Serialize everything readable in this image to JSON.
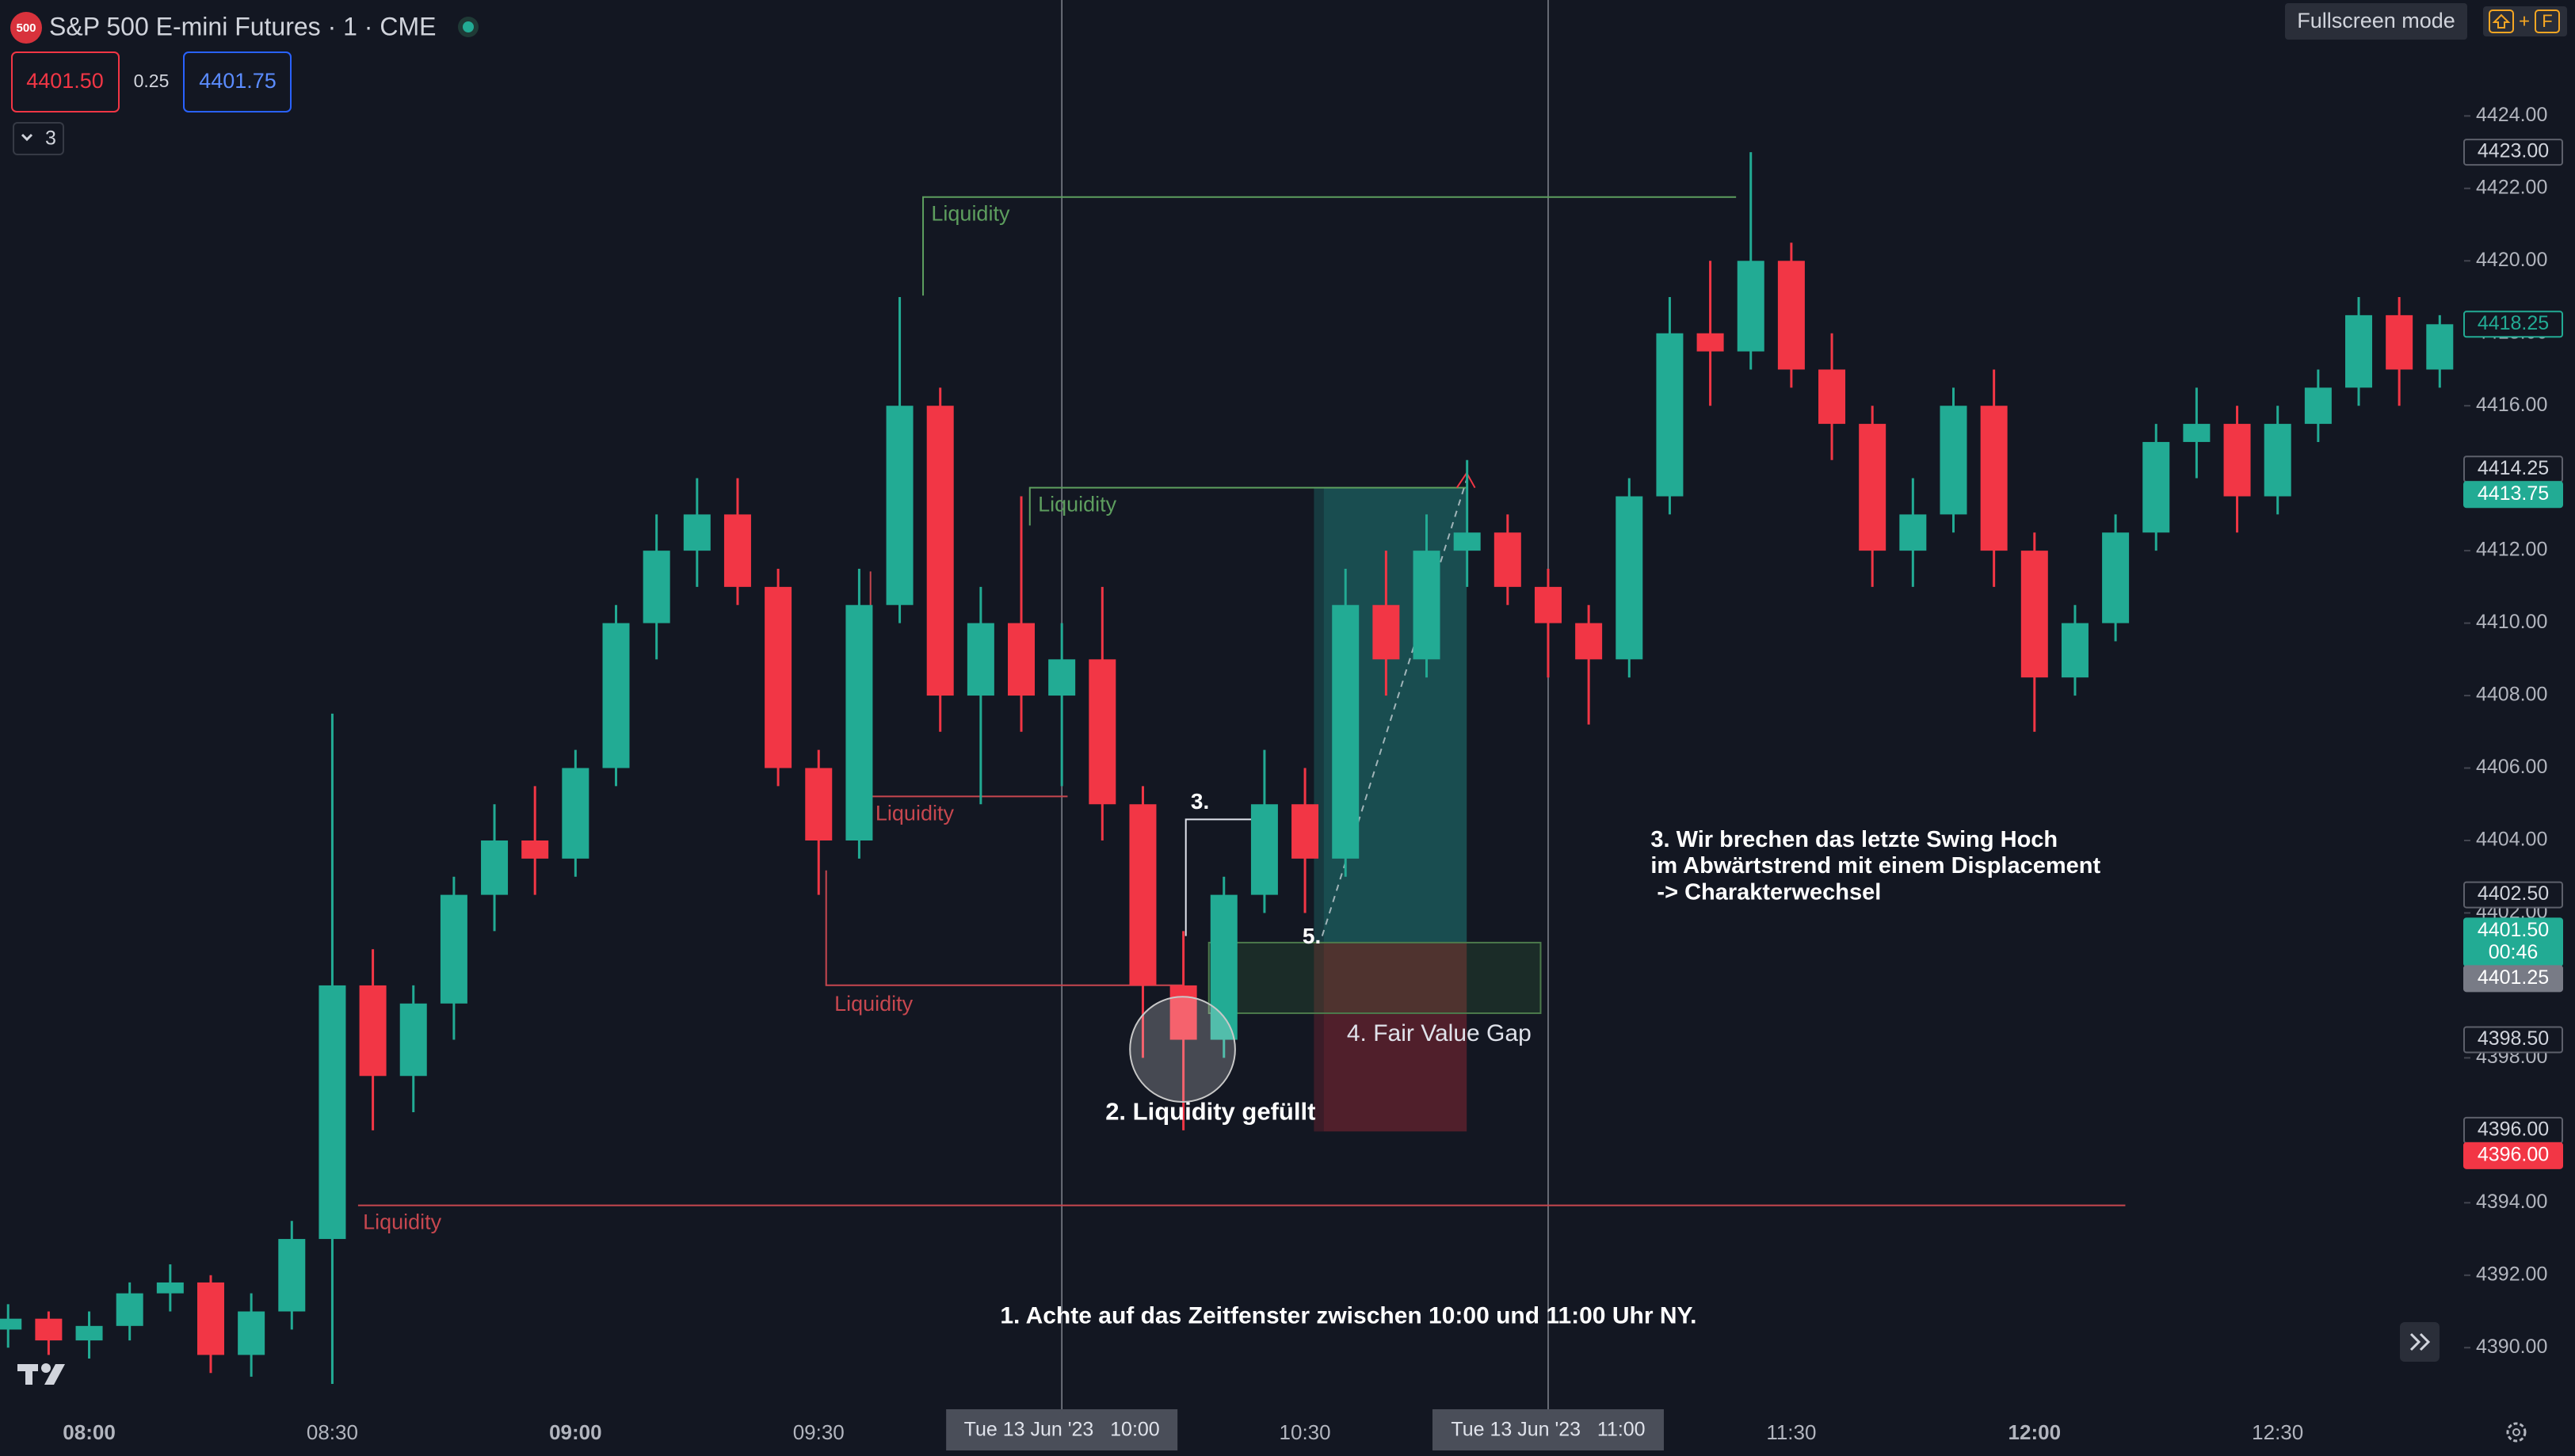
{
  "header": {
    "symbol_badge": "500",
    "title": "S&P 500 E-mini Futures · 1 · CME",
    "sell": "4401.50",
    "spread": "0.25",
    "buy": "4401.75",
    "indicators": "3"
  },
  "toolbar": {
    "fullscreen": "Fullscreen mode",
    "shortcut_plus": "+",
    "shortcut_key": "F"
  },
  "chart_data": {
    "type": "candlestick",
    "x": [
      "07:50",
      "07:55",
      "08:00",
      "08:05",
      "08:10",
      "08:15",
      "08:20",
      "08:25",
      "08:30",
      "08:35",
      "08:40",
      "08:45",
      "08:50",
      "08:55",
      "09:00",
      "09:05",
      "09:10",
      "09:15",
      "09:20",
      "09:25",
      "09:30",
      "09:35",
      "09:40",
      "09:45",
      "09:50",
      "09:55",
      "10:00",
      "10:05",
      "10:10",
      "10:15",
      "10:20",
      "10:25",
      "10:30",
      "10:35",
      "10:40",
      "10:45",
      "10:50",
      "10:55",
      "11:00",
      "11:05",
      "11:10",
      "11:15",
      "11:20",
      "11:25",
      "11:30",
      "11:35",
      "11:40",
      "11:45",
      "11:50",
      "11:55",
      "12:00",
      "12:05",
      "12:10",
      "12:15",
      "12:20",
      "12:25",
      "12:30",
      "12:35",
      "12:40",
      "12:45",
      "12:50"
    ],
    "open": [
      4390.5,
      4390.8,
      4390.2,
      4390.6,
      4391.5,
      4391.8,
      4389.8,
      4391,
      4393,
      4400,
      4397.5,
      4399.5,
      4402.5,
      4404,
      4403.5,
      4406,
      4410,
      4412,
      4413,
      4411,
      4406,
      4404,
      4410.5,
      4416,
      4408,
      4410,
      4408,
      4409,
      4405,
      4400,
      4398.5,
      4402.5,
      4405,
      4403.5,
      4410.5,
      4409,
      4412,
      4412.5,
      4411,
      4410,
      4409,
      4413.5,
      4418,
      4417.5,
      4420,
      4417,
      4415.5,
      4412,
      4413,
      4416,
      4412,
      4408.5,
      4410,
      4412.5,
      4415,
      4415.5,
      4413.5,
      4415.5,
      4416.5,
      4418.5,
      4417
    ],
    "high": [
      4391.2,
      4391,
      4391,
      4391.8,
      4392.3,
      4392,
      4391.5,
      4393.5,
      4407.5,
      4401,
      4400,
      4403,
      4405,
      4405.5,
      4406.5,
      4410.5,
      4413,
      4414,
      4414,
      4411.5,
      4406.5,
      4411.5,
      4419,
      4416.5,
      4411,
      4413.5,
      4410,
      4411,
      4405.5,
      4401.5,
      4403,
      4406.5,
      4406,
      4411.5,
      4412,
      4413,
      4414.5,
      4413,
      4411.5,
      4410.5,
      4414,
      4419,
      4420,
      4423,
      4420.5,
      4418,
      4416,
      4414,
      4416.5,
      4417,
      4412.5,
      4410.5,
      4413,
      4415.5,
      4416.5,
      4416,
      4416,
      4417,
      4419,
      4419,
      4418.5
    ],
    "low": [
      4390,
      4389.8,
      4389.7,
      4390.2,
      4391,
      4389.3,
      4389.2,
      4390.5,
      4389,
      4396,
      4396.5,
      4398.5,
      4401.5,
      4402.5,
      4403,
      4405.5,
      4409,
      4411,
      4410.5,
      4405.5,
      4402.5,
      4403.5,
      4410,
      4407,
      4405,
      4407,
      4405.5,
      4404,
      4398,
      4396,
      4398,
      4402,
      4402,
      4403,
      4408,
      4408.5,
      4411,
      4410.5,
      4408.5,
      4407.2,
      4408.5,
      4413,
      4416,
      4417,
      4416.5,
      4414.5,
      4411,
      4411,
      4412.5,
      4411,
      4407,
      4408,
      4409.5,
      4412,
      4414,
      4412.5,
      4413,
      4415,
      4416,
      4416,
      4416.5
    ],
    "close": [
      4390.8,
      4390.2,
      4390.6,
      4391.5,
      4391.8,
      4389.8,
      4391,
      4393,
      4400,
      4397.5,
      4399.5,
      4402.5,
      4404,
      4403.5,
      4406,
      4410,
      4412,
      4413,
      4411,
      4406,
      4404,
      4410.5,
      4416,
      4408,
      4410,
      4408,
      4409,
      4405,
      4400,
      4398.5,
      4402.5,
      4405,
      4403.5,
      4410.5,
      4409,
      4412,
      4412.5,
      4411,
      4410,
      4409,
      4413.5,
      4418,
      4417.5,
      4420,
      4417,
      4415.5,
      4412,
      4413,
      4416,
      4412,
      4408.5,
      4410,
      4412.5,
      4415,
      4415.5,
      4413.5,
      4415.5,
      4416.5,
      4418.5,
      4417,
      4418.25
    ],
    "up_color": "#22ab94",
    "down_color": "#f23645",
    "xlim": [
      "07:49",
      "12:53"
    ],
    "xticks": [
      "08:00",
      "08:30",
      "09:00",
      "09:30",
      "10:30",
      "11:30",
      "12:00",
      "12:30"
    ],
    "time_markers": [
      {
        "value": "10:00",
        "label": "Tue 13 Jun '23   10:00"
      },
      {
        "value": "11:00",
        "label": "Tue 13 Jun '23   11:00"
      }
    ],
    "ylim": [
      4388.3,
      4427.2
    ],
    "yticks": [
      {
        "value": 4390,
        "label": "4390.00"
      },
      {
        "value": 4392,
        "label": "4392.00"
      },
      {
        "value": 4394,
        "label": "4394.00"
      },
      {
        "value": 4396,
        "label": "4396.00"
      },
      {
        "value": 4398,
        "label": "4398.00"
      },
      {
        "value": 4400,
        "label": "4400.00"
      },
      {
        "value": 4402,
        "label": "4402.00"
      },
      {
        "value": 4404,
        "label": "4404.00"
      },
      {
        "value": 4406,
        "label": "4406.00"
      },
      {
        "value": 4408,
        "label": "4408.00"
      },
      {
        "value": 4410,
        "label": "4410.00"
      },
      {
        "value": 4412,
        "label": "4412.00"
      },
      {
        "value": 4414,
        "label": "4414.00"
      },
      {
        "value": 4416,
        "label": "4416.00"
      },
      {
        "value": 4418,
        "label": "4418.00"
      },
      {
        "value": 4420,
        "label": "4420.00"
      },
      {
        "value": 4422,
        "label": "4422.00"
      },
      {
        "value": 4424,
        "label": "4424.00"
      }
    ],
    "price_markers": [
      {
        "value": 4423,
        "label": "4423.00",
        "style": "outline"
      },
      {
        "value": 4418.25,
        "label": "4418.25",
        "style": "green-outline"
      },
      {
        "value": 4414.25,
        "label": "4414.25",
        "style": "outline"
      },
      {
        "value": 4413.75,
        "label": "4413.75",
        "style": "green"
      },
      {
        "value": 4402.5,
        "label": "4402.50",
        "style": "outline"
      },
      {
        "value": 4401.5,
        "label": "4401.50",
        "style": "green",
        "countdown": "00:46"
      },
      {
        "value": 4401.25,
        "label": "4401.25",
        "style": "gray"
      },
      {
        "value": 4398.5,
        "label": "4398.50",
        "style": "outline"
      },
      {
        "value": 4396,
        "label": "4396.00",
        "style": "outline"
      },
      {
        "value": 4396,
        "label": "4396.00",
        "style": "red"
      }
    ],
    "annotations": [
      "Liquidity",
      "Liquidity",
      "Liquidity",
      "Liquidity",
      "Liquidity",
      "3.",
      "2. Liquidity gefüllt",
      "4. Fair Value Gap",
      "5.",
      "3. Wir brechen das letzte Swing Hoch",
      "im Abwärtstrend mit einem Displacement",
      " -> Charakterwechsel",
      "1. Achte auf das Zeitfenster zwischen 10:00 und 11:00 Uhr NY."
    ]
  }
}
